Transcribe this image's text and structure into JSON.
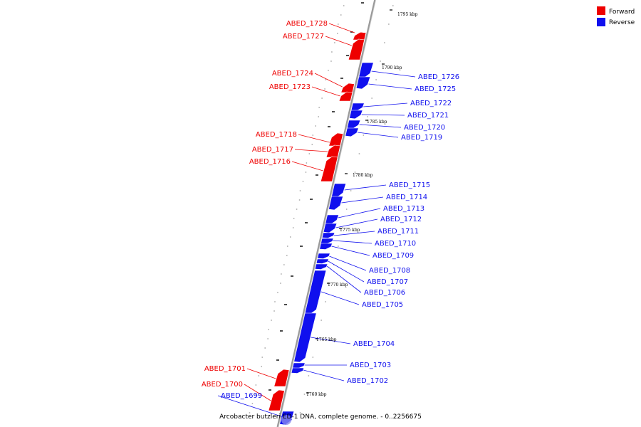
{
  "colors": {
    "forward": "#ee0000",
    "reverse": "#1010ee",
    "backbone": "#999999"
  },
  "legend": {
    "forward_label": "Forward",
    "reverse_label": "Reverse"
  },
  "footer": {
    "title": "Arcobacter butzleri ED-1 DNA, complete genome. - 0..2256675"
  },
  "scale_labels": [
    "1795 kbp",
    "1790 kbp",
    "1785 kbp",
    "1780 kbp",
    "1775 kbp",
    "1770 kbp",
    "1765 kbp",
    "1760 kbp"
  ],
  "genes": [
    {
      "name": "ABED_1728",
      "strand": "forward"
    },
    {
      "name": "ABED_1727",
      "strand": "forward"
    },
    {
      "name": "ABED_1726",
      "strand": "reverse"
    },
    {
      "name": "ABED_1725",
      "strand": "reverse"
    },
    {
      "name": "ABED_1724",
      "strand": "forward"
    },
    {
      "name": "ABED_1723",
      "strand": "forward"
    },
    {
      "name": "ABED_1722",
      "strand": "reverse"
    },
    {
      "name": "ABED_1721",
      "strand": "reverse"
    },
    {
      "name": "ABED_1720",
      "strand": "reverse"
    },
    {
      "name": "ABED_1719",
      "strand": "reverse"
    },
    {
      "name": "ABED_1718",
      "strand": "forward"
    },
    {
      "name": "ABED_1717",
      "strand": "forward"
    },
    {
      "name": "ABED_1716",
      "strand": "forward"
    },
    {
      "name": "ABED_1715",
      "strand": "reverse"
    },
    {
      "name": "ABED_1714",
      "strand": "reverse"
    },
    {
      "name": "ABED_1713",
      "strand": "reverse"
    },
    {
      "name": "ABED_1712",
      "strand": "reverse"
    },
    {
      "name": "ABED_1711",
      "strand": "reverse"
    },
    {
      "name": "ABED_1710",
      "strand": "reverse"
    },
    {
      "name": "ABED_1709",
      "strand": "reverse"
    },
    {
      "name": "ABED_1708",
      "strand": "reverse"
    },
    {
      "name": "ABED_1707",
      "strand": "reverse"
    },
    {
      "name": "ABED_1706",
      "strand": "reverse"
    },
    {
      "name": "ABED_1705",
      "strand": "reverse"
    },
    {
      "name": "ABED_1704",
      "strand": "reverse"
    },
    {
      "name": "ABED_1703",
      "strand": "reverse"
    },
    {
      "name": "ABED_1702",
      "strand": "reverse"
    },
    {
      "name": "ABED_1701",
      "strand": "forward"
    },
    {
      "name": "ABED_1700",
      "strand": "forward"
    },
    {
      "name": "ABED_1699",
      "strand": "reverse"
    }
  ]
}
